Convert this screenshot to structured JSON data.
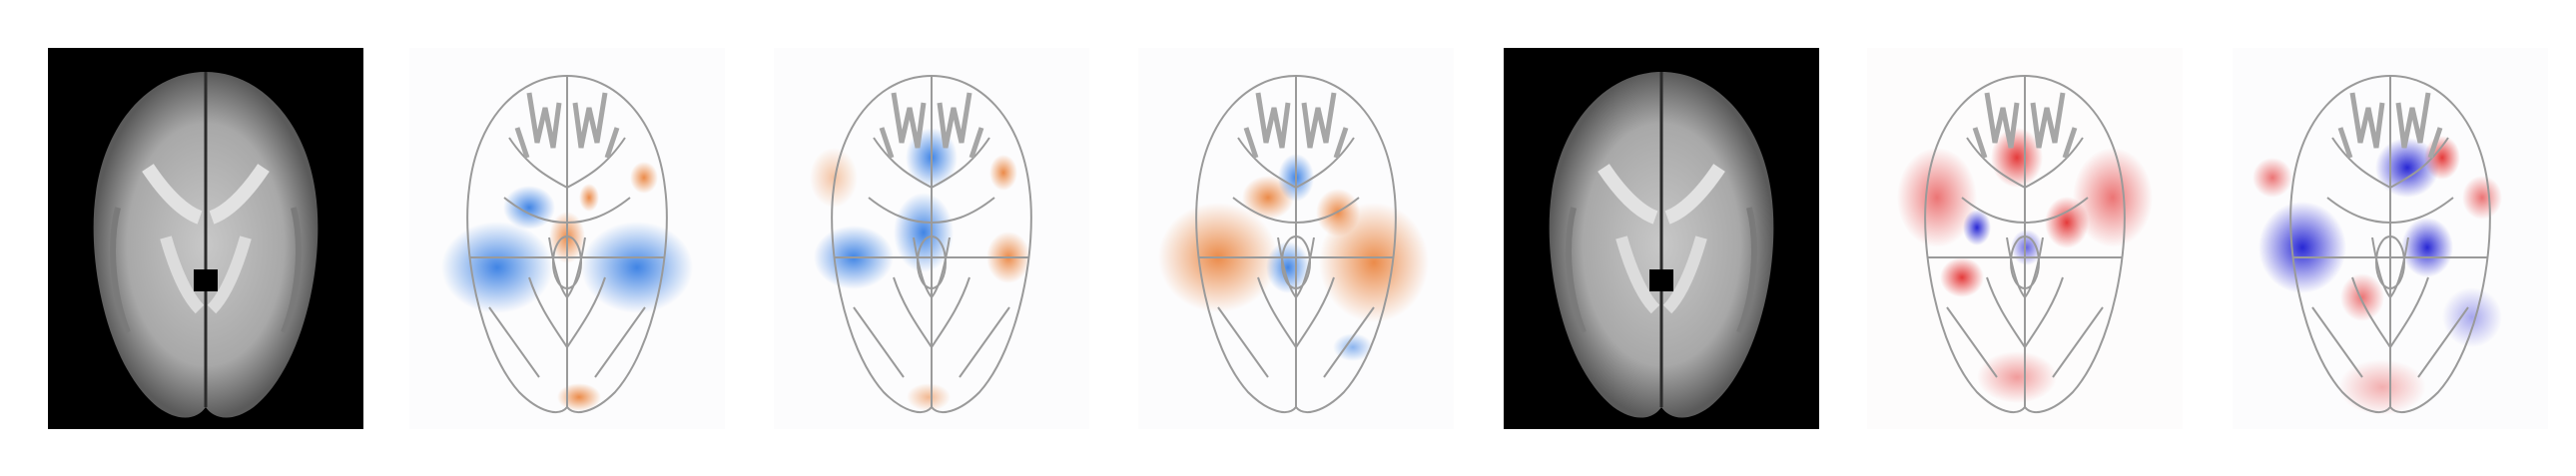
{
  "figure": {
    "panels": [
      {
        "kind": "anatomical-mri",
        "background": "#000000"
      },
      {
        "kind": "saliency-map",
        "colormap": "blue-orange",
        "dominant": "blue"
      },
      {
        "kind": "saliency-map",
        "colormap": "blue-orange",
        "dominant": "blue"
      },
      {
        "kind": "saliency-map",
        "colormap": "blue-orange",
        "dominant": "orange"
      },
      {
        "kind": "anatomical-mri",
        "background": "#000000"
      },
      {
        "kind": "saliency-map",
        "colormap": "blue-red",
        "dominant": "red"
      },
      {
        "kind": "saliency-map",
        "colormap": "blue-red",
        "dominant": "blue"
      }
    ],
    "colors": {
      "outline": "#9a9a9a",
      "blue": "#1f6fe0",
      "orange": "#e8772a",
      "red": "#e01818",
      "deep-blue": "#1010d0"
    }
  }
}
